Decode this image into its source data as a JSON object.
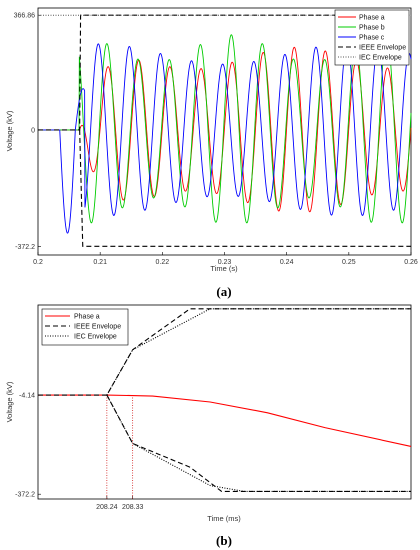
{
  "chart_data": [
    {
      "type": "line",
      "xlabel": "Time (s)",
      "ylabel": "Voltage (kV)",
      "xlim": [
        0.2,
        0.26
      ],
      "ylim": [
        -400,
        390
      ],
      "xticks": [
        0.2,
        0.21,
        0.22,
        0.23,
        0.24,
        0.25,
        0.26
      ],
      "yticks": [
        -372.2,
        0,
        366.86
      ],
      "ytick_labels": [
        "-372.2",
        "0",
        "366.86"
      ],
      "legend": "top-right",
      "grid": false,
      "series": [
        {
          "name": "Phase a",
          "color": "#ff0000",
          "style": "solid"
        },
        {
          "name": "Phase b",
          "color": "#00cc00",
          "style": "solid"
        },
        {
          "name": "Phase c",
          "color": "#0000ff",
          "style": "solid"
        },
        {
          "name": "IEEE Envelope",
          "color": "#000000",
          "style": "dashed",
          "points": [
            [
              0.2,
              0
            ],
            [
              0.2067,
              0
            ],
            [
              0.20685,
              366.86
            ],
            [
              0.26,
              366.86
            ]
          ],
          "points_lower": [
            [
              0.2067,
              0
            ],
            [
              0.2072,
              -372.2
            ],
            [
              0.26,
              -372.2
            ]
          ]
        },
        {
          "name": "IEC Envelope",
          "color": "#555555",
          "style": "dotted",
          "points": [
            [
              0.2,
              366.86
            ],
            [
              0.2068,
              366.86
            ],
            [
              0.26,
              366.86
            ]
          ]
        }
      ],
      "caption": "(a)"
    },
    {
      "type": "line",
      "xlabel": "Time (ms)",
      "ylabel": "Voltage (kV)",
      "xlim": [
        208.0,
        209.3
      ],
      "ylim": [
        -390,
        330
      ],
      "xticks": [
        208.24,
        208.33
      ],
      "xtick_labels": [
        "208.24",
        "208.33"
      ],
      "yticks": [
        -372.2,
        -4.14
      ],
      "ytick_labels": [
        "-372.2",
        "-4.14"
      ],
      "legend": "top-left",
      "grid": false,
      "series": [
        {
          "name": "Phase a",
          "color": "#ff0000",
          "style": "solid",
          "points": [
            [
              208.0,
              -4.14
            ],
            [
              208.24,
              -4.14
            ],
            [
              208.4,
              -8
            ],
            [
              208.6,
              -30
            ],
            [
              208.8,
              -70
            ],
            [
              209.0,
              -125
            ],
            [
              209.3,
              -195
            ]
          ]
        },
        {
          "name": "IEEE Envelope",
          "color": "#000000",
          "style": "dashed",
          "points": [
            [
              208.0,
              -4.14
            ],
            [
              208.24,
              -4.14
            ],
            [
              208.33,
              164
            ],
            [
              208.53,
              316
            ],
            [
              209.3,
              316
            ]
          ],
          "points_lower": [
            [
              208.24,
              -4.14
            ],
            [
              208.33,
              -184
            ],
            [
              208.53,
              -272
            ],
            [
              208.64,
              -362
            ],
            [
              209.3,
              -362
            ]
          ]
        },
        {
          "name": "IEC Envelope",
          "color": "#000000",
          "style": "dotted",
          "points": [
            [
              208.24,
              -4.14
            ],
            [
              208.33,
              164
            ],
            [
              208.6,
              316
            ],
            [
              209.3,
              316
            ]
          ],
          "points_lower": [
            [
              208.24,
              -4.14
            ],
            [
              208.33,
              -184
            ],
            [
              208.6,
              -340
            ],
            [
              208.72,
              -362
            ],
            [
              209.3,
              -362
            ]
          ]
        }
      ],
      "caption": "(b)"
    }
  ]
}
